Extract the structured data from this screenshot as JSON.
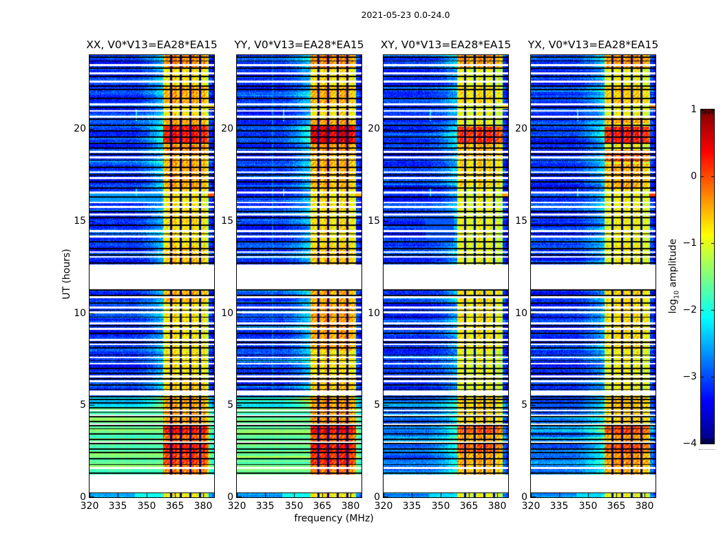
{
  "figure": {
    "title": "2021-05-23 0.0-24.0",
    "background": "#ffffff",
    "text_color": "#000000"
  },
  "axes": {
    "xlabel": "frequency (MHz)",
    "ylabel": "UT (hours)",
    "x_tick_labels": [
      "320",
      "335",
      "350",
      "365",
      "380"
    ],
    "y_tick_labels": [
      "0",
      "5",
      "10",
      "15",
      "20"
    ]
  },
  "colorbar": {
    "label_prefix": "log",
    "label_sub": "10",
    "label_suffix": " amplitude",
    "tick_labels": [
      "1",
      "0",
      "−1",
      "−2",
      "−3",
      "−4"
    ]
  },
  "chart_data": {
    "type": "heatmap",
    "title": "2021-05-23 0.0-24.0",
    "xlabel": "frequency (MHz)",
    "ylabel": "UT (hours)",
    "x_range_mhz": [
      320,
      385.8
    ],
    "x_ticks": [
      320,
      335,
      350,
      365,
      380
    ],
    "y_range_hours": [
      0,
      24
    ],
    "y_ticks": [
      0,
      5,
      10,
      15,
      20
    ],
    "colorbar": {
      "label": "log10 amplitude",
      "range": [
        -4,
        1
      ],
      "ticks": [
        1,
        0,
        -1,
        -2,
        -3,
        -4
      ],
      "colormap": "jet"
    },
    "rfi_band": {
      "f0": 359.0,
      "f1": 382.8,
      "separators": [
        363.2,
        368.3,
        373.4,
        378.5
      ],
      "separator_halfwidth": 0.55
    },
    "background_level": -3.15,
    "noise_sigma": 0.5,
    "band_noise_sigma": 0.45,
    "data_gaps_hours": [
      [
        0.25,
        1.25
      ],
      [
        5.55,
        5.78
      ],
      [
        11.3,
        12.62
      ],
      [
        1.55,
        1.63
      ],
      [
        2.95,
        3.04
      ],
      [
        3.93,
        4.01
      ],
      [
        4.4,
        4.5
      ],
      [
        4.68,
        4.76
      ],
      [
        6.25,
        6.34
      ],
      [
        6.5,
        6.6
      ],
      [
        7.2,
        7.3
      ],
      [
        7.55,
        7.64
      ],
      [
        8.25,
        8.34
      ],
      [
        8.5,
        8.6
      ],
      [
        9.1,
        9.2
      ],
      [
        9.4,
        9.5
      ],
      [
        10.0,
        10.1
      ],
      [
        10.26,
        10.36
      ],
      [
        10.8,
        10.9
      ],
      [
        13.0,
        13.1
      ],
      [
        13.26,
        13.36
      ],
      [
        14.1,
        14.2
      ],
      [
        14.4,
        14.5
      ],
      [
        15.3,
        15.4
      ],
      [
        15.7,
        15.8
      ],
      [
        15.95,
        16.04
      ],
      [
        16.5,
        16.58
      ],
      [
        17.28,
        17.38
      ],
      [
        17.6,
        17.7
      ],
      [
        18.4,
        18.5
      ],
      [
        18.7,
        18.8
      ],
      [
        20.6,
        20.7
      ],
      [
        20.93,
        21.02
      ],
      [
        21.28,
        21.37
      ],
      [
        22.5,
        22.6
      ],
      [
        22.96,
        23.06
      ],
      [
        23.4,
        23.5
      ]
    ],
    "scan_boundaries_hours": [
      0.27,
      1.32,
      1.78,
      2.08,
      2.43,
      2.62,
      2.93,
      3.15,
      3.43,
      3.72,
      3.9,
      4.1,
      4.38,
      4.62,
      4.86,
      5.12,
      5.3,
      5.47,
      5.85,
      6.08,
      6.42,
      6.72,
      7.0,
      7.42,
      7.72,
      8.1,
      8.42,
      8.9,
      9.3,
      9.78,
      10.15,
      10.55,
      10.95,
      11.25,
      12.7,
      13.15,
      13.5,
      13.88,
      14.3,
      14.78,
      15.18,
      15.52,
      16.3,
      16.78,
      17.12,
      17.5,
      17.9,
      18.3,
      18.62,
      18.95,
      19.22,
      19.55,
      19.88,
      20.18,
      20.52,
      21.15,
      21.65,
      22.12,
      22.32,
      22.85,
      23.28,
      23.68,
      23.9
    ],
    "panels": [
      {
        "title": "XX, V0*V13=EA28*EA15",
        "pol": "XX",
        "band_base": -0.85,
        "bursts": [
          [
            23.3,
            24,
            -0.35
          ],
          [
            21.4,
            22.3,
            -0.5
          ],
          [
            20.25,
            20.6,
            -0.45
          ],
          [
            19.2,
            20.15,
            0.25
          ],
          [
            18.55,
            19.15,
            -0.35
          ],
          [
            16.7,
            18.4,
            -0.5
          ],
          [
            14.8,
            15.6,
            -0.75
          ],
          [
            12.62,
            13.6,
            -0.65
          ],
          [
            10.6,
            11.3,
            -0.55
          ],
          [
            5.78,
            6.4,
            -0.7
          ],
          [
            4.88,
            5.45,
            -0.5
          ],
          [
            3.95,
            4.88,
            -0.45
          ],
          [
            3.45,
            3.95,
            0.3
          ],
          [
            2.95,
            3.45,
            -0.15
          ],
          [
            2.45,
            2.95,
            0.25
          ],
          [
            1.8,
            2.45,
            0.05
          ],
          [
            1.25,
            1.8,
            -0.3
          ],
          [
            0,
            0.25,
            -0.9
          ]
        ],
        "bg_regions": [
          [
            1.25,
            4.88,
            -1.62,
            0.13
          ],
          [
            4.88,
            5.45,
            -2.25,
            0.2
          ],
          [
            0,
            0.25,
            -2.5,
            0.3
          ]
        ],
        "bg_patches": [
          [
            0,
            0.25,
            344,
            357,
            -2.05
          ],
          [
            16.05,
            16.55,
            320,
            358,
            -2.6
          ]
        ],
        "v_streaks": [
          [
            344.8,
            20.4,
            21.05,
            -2.1
          ],
          [
            344.8,
            16.3,
            16.75,
            -2.2
          ]
        ],
        "edge_blobs": [
          [
            16.45,
            0.0
          ],
          [
            21.2,
            -0.6
          ]
        ]
      },
      {
        "title": "YY, V0*V13=EA28*EA15",
        "pol": "YY",
        "band_base": -0.8,
        "bursts": [
          [
            23.3,
            24,
            -0.35
          ],
          [
            21.4,
            22.3,
            -0.55
          ],
          [
            20.25,
            20.55,
            -0.45
          ],
          [
            19.25,
            20.15,
            0.5
          ],
          [
            18.55,
            19.2,
            -0.4
          ],
          [
            16.7,
            18.4,
            -0.55
          ],
          [
            12.62,
            13.6,
            -0.65
          ],
          [
            10.6,
            11.3,
            -0.5
          ],
          [
            8.0,
            10.55,
            -0.45
          ],
          [
            5.78,
            6.5,
            -0.65
          ],
          [
            4.88,
            5.45,
            -0.45
          ],
          [
            3.95,
            4.88,
            -0.4
          ],
          [
            3.45,
            3.95,
            0.35
          ],
          [
            2.95,
            3.45,
            -0.1
          ],
          [
            2.45,
            2.95,
            0.3
          ],
          [
            1.8,
            2.45,
            0.15
          ],
          [
            1.25,
            1.8,
            -0.25
          ],
          [
            0,
            0.25,
            -0.85
          ]
        ],
        "bg_regions": [
          [
            1.25,
            4.88,
            -1.62,
            0.13
          ],
          [
            4.88,
            5.45,
            -2.25,
            0.2
          ],
          [
            0,
            0.25,
            -2.5,
            0.3
          ]
        ],
        "bg_patches": [
          [
            0,
            0.25,
            344,
            357,
            -2.05
          ]
        ],
        "v_streaks": [
          [
            339.0,
            0,
            24,
            -2.75
          ],
          [
            344.8,
            20.4,
            21.05,
            -2.15
          ],
          [
            344.8,
            16.3,
            16.75,
            -2.3
          ]
        ],
        "edge_blobs": [
          [
            16.45,
            -0.5
          ]
        ]
      },
      {
        "title": "XY, V0*V13=EA28*EA15",
        "pol": "XY",
        "band_base": -1.0,
        "bursts": [
          [
            23.3,
            24,
            -0.45
          ],
          [
            21.4,
            22.3,
            -0.8
          ],
          [
            19.25,
            20.1,
            0.1
          ],
          [
            18.5,
            19.2,
            -0.6
          ],
          [
            16.9,
            18.4,
            -0.75
          ],
          [
            10.6,
            11.3,
            -0.8
          ],
          [
            8.0,
            10.55,
            -0.85
          ],
          [
            4.88,
            5.45,
            -0.7
          ],
          [
            3.95,
            4.88,
            -0.75
          ],
          [
            3.45,
            3.95,
            -0.1
          ],
          [
            2.95,
            3.45,
            -0.5
          ],
          [
            2.45,
            2.95,
            -0.15
          ],
          [
            1.8,
            2.45,
            -0.5
          ],
          [
            1.25,
            1.8,
            -0.6
          ],
          [
            0,
            0.25,
            -1.0
          ]
        ],
        "bg_regions": [
          [
            1.25,
            4.88,
            -2.8,
            0.45
          ],
          [
            4.88,
            5.45,
            -2.95,
            0.35
          ],
          [
            0,
            0.25,
            -2.7,
            0.3
          ]
        ],
        "bg_patches": [
          [
            0,
            0.25,
            344,
            357,
            -2.3
          ],
          [
            13.9,
            15.4,
            342,
            357,
            -2.95
          ]
        ],
        "v_streaks": [
          [
            344.8,
            20.4,
            21.05,
            -2.2
          ],
          [
            344.8,
            16.3,
            16.75,
            -2.3
          ]
        ],
        "edge_blobs": [
          [
            16.45,
            -0.4
          ],
          [
            21.2,
            -0.7
          ]
        ]
      },
      {
        "title": "YX, V0*V13=EA28*EA15",
        "pol": "YX",
        "band_base": -0.95,
        "bursts": [
          [
            23.3,
            24,
            -0.4
          ],
          [
            21.4,
            22.3,
            -0.7
          ],
          [
            20.3,
            20.6,
            -0.5
          ],
          [
            19.2,
            20.1,
            0.2
          ],
          [
            18.2,
            18.85,
            -0.2
          ],
          [
            16.7,
            18.1,
            -0.55
          ],
          [
            10.6,
            11.3,
            -0.75
          ],
          [
            8.0,
            10.55,
            -0.8
          ],
          [
            4.88,
            5.45,
            -0.65
          ],
          [
            3.95,
            4.88,
            -0.7
          ],
          [
            3.45,
            3.95,
            -0.05
          ],
          [
            2.95,
            3.45,
            -0.45
          ],
          [
            2.45,
            2.95,
            -0.1
          ],
          [
            1.8,
            2.45,
            -0.4
          ],
          [
            1.25,
            1.8,
            -0.55
          ],
          [
            0,
            0.25,
            -1.0
          ]
        ],
        "bg_regions": [
          [
            1.25,
            4.88,
            -2.8,
            0.45
          ],
          [
            4.88,
            5.45,
            -2.95,
            0.35
          ],
          [
            0,
            0.25,
            -2.7,
            0.3
          ]
        ],
        "bg_patches": [
          [
            0,
            0.25,
            344,
            357,
            -2.3
          ]
        ],
        "v_streaks": [
          [
            344.8,
            20.4,
            21.05,
            -2.1
          ],
          [
            344.8,
            16.3,
            16.75,
            -2.1
          ]
        ],
        "edge_blobs": [
          [
            16.4,
            0.1
          ],
          [
            21.2,
            -0.2
          ]
        ]
      }
    ]
  }
}
